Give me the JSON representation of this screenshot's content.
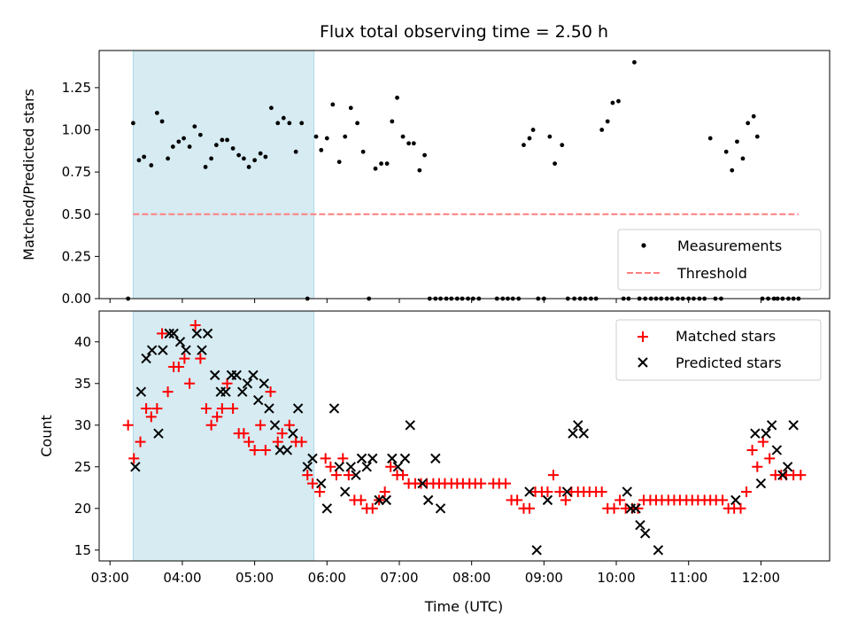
{
  "figure": {
    "title": "Flux total observing time = 2.50 h",
    "xlabel": "Time (UTC)"
  },
  "chart_data": [
    {
      "type": "scatter",
      "ylabel": "Matched/Predicted stars",
      "ylim": [
        0,
        1.47
      ],
      "yticks": [
        0.0,
        0.25,
        0.5,
        0.75,
        1.0,
        1.25
      ],
      "ytick_labels": [
        "0.00",
        "0.25",
        "0.50",
        "0.75",
        "1.00",
        "1.25"
      ],
      "xlim": [
        2.85,
        12.95
      ],
      "shaded_span": {
        "x0": 3.32,
        "x1": 5.82,
        "color": "#add8e6"
      },
      "legend": {
        "position": "lower-right",
        "entries": [
          "Measurements",
          "Threshold"
        ]
      },
      "series": [
        {
          "name": "Measurements",
          "color": "#000000",
          "marker": "dot",
          "x": [
            3.25,
            3.32,
            3.4,
            3.47,
            3.57,
            3.65,
            3.72,
            3.8,
            3.87,
            3.95,
            4.02,
            4.1,
            4.17,
            4.25,
            4.32,
            4.4,
            4.47,
            4.55,
            4.62,
            4.7,
            4.78,
            4.85,
            4.92,
            5.0,
            5.08,
            5.15,
            5.23,
            5.32,
            5.4,
            5.48,
            5.57,
            5.65,
            5.73,
            5.85,
            5.92,
            6.0,
            6.08,
            6.17,
            6.25,
            6.33,
            6.42,
            6.5,
            6.58,
            6.67,
            6.75,
            6.83,
            6.9,
            6.97,
            7.05,
            7.13,
            7.2,
            7.28,
            7.35,
            7.42,
            7.5,
            7.57,
            7.65,
            7.72,
            7.8,
            7.87,
            7.95,
            8.02,
            8.1,
            8.35,
            8.43,
            8.5,
            8.57,
            8.65,
            8.72,
            8.8,
            8.85,
            8.92,
            9.0,
            9.08,
            9.15,
            9.25,
            9.33,
            9.42,
            9.5,
            9.57,
            9.65,
            9.72,
            9.8,
            9.88,
            9.95,
            10.03,
            10.1,
            10.17,
            10.25,
            10.32,
            10.4,
            10.48,
            10.55,
            10.62,
            10.7,
            10.77,
            10.85,
            10.92,
            11.0,
            11.07,
            11.15,
            11.22,
            11.3,
            11.37,
            11.45,
            11.52,
            11.6,
            11.67,
            11.75,
            11.82,
            11.9,
            11.95,
            12.02,
            12.1,
            12.18,
            12.23,
            12.3,
            12.38,
            12.45,
            12.52
          ],
          "y": [
            0.0,
            1.04,
            0.82,
            0.84,
            0.79,
            1.1,
            1.05,
            0.83,
            0.9,
            0.93,
            0.95,
            0.9,
            1.02,
            0.97,
            0.78,
            0.83,
            0.91,
            0.94,
            0.94,
            0.89,
            0.85,
            0.83,
            0.78,
            0.82,
            0.86,
            0.84,
            1.13,
            1.04,
            1.07,
            1.04,
            0.87,
            1.04,
            0.0,
            0.96,
            0.88,
            0.95,
            1.15,
            0.81,
            0.96,
            1.13,
            1.04,
            0.87,
            0.0,
            0.77,
            0.8,
            0.8,
            1.05,
            1.19,
            0.96,
            0.92,
            0.92,
            0.76,
            0.85,
            0.0,
            0.0,
            0.0,
            0.0,
            0.0,
            0.0,
            0.0,
            0.0,
            0.0,
            0.0,
            0.0,
            0.0,
            0.0,
            0.0,
            0.0,
            0.91,
            0.95,
            1.0,
            0.0,
            0.0,
            0.96,
            0.8,
            0.91,
            0.0,
            0.0,
            0.0,
            0.0,
            0.0,
            0.0,
            1.0,
            1.05,
            1.16,
            1.17,
            0.0,
            0.0,
            1.4,
            0.0,
            0.0,
            0.0,
            0.0,
            0.0,
            0.0,
            0.0,
            0.0,
            0.0,
            0.0,
            0.0,
            0.0,
            0.0,
            0.95,
            0.0,
            0.0,
            0.87,
            0.76,
            0.93,
            0.83,
            1.04,
            1.08,
            0.96,
            0.0,
            0.0,
            0.0,
            0.0,
            0.0,
            0.0,
            0.0,
            0.0
          ]
        },
        {
          "name": "Threshold",
          "color": "#ff7f7f",
          "style": "dashed",
          "x": [
            3.32,
            12.52
          ],
          "y": [
            0.5,
            0.5
          ]
        }
      ]
    },
    {
      "type": "scatter",
      "ylabel": "Count",
      "ylim": [
        13.7,
        43.7
      ],
      "yticks": [
        15,
        20,
        25,
        30,
        35,
        40
      ],
      "ytick_labels": [
        "15",
        "20",
        "25",
        "30",
        "35",
        "40"
      ],
      "xlim": [
        2.85,
        12.95
      ],
      "xticks": [
        3,
        4,
        5,
        6,
        7,
        8,
        9,
        10,
        11,
        12
      ],
      "xtick_labels": [
        "03:00",
        "04:00",
        "05:00",
        "06:00",
        "07:00",
        "08:00",
        "09:00",
        "10:00",
        "11:00",
        "12:00"
      ],
      "shaded_span": {
        "x0": 3.32,
        "x1": 5.82,
        "color": "#add8e6"
      },
      "legend": {
        "position": "top-right",
        "entries": [
          "Matched stars",
          "Predicted stars"
        ]
      },
      "series": [
        {
          "name": "Matched stars",
          "color": "#ff0000",
          "marker": "plus",
          "x": [
            3.25,
            3.33,
            3.42,
            3.5,
            3.57,
            3.65,
            3.72,
            3.8,
            3.88,
            3.95,
            4.03,
            4.1,
            4.18,
            4.25,
            4.33,
            4.4,
            4.48,
            4.55,
            4.62,
            4.7,
            4.78,
            4.85,
            4.92,
            5.0,
            5.08,
            5.15,
            5.22,
            5.32,
            5.38,
            5.48,
            5.57,
            5.65,
            5.73,
            5.8,
            5.9,
            5.98,
            6.05,
            6.13,
            6.22,
            6.3,
            6.38,
            6.47,
            6.55,
            6.63,
            6.72,
            6.8,
            6.88,
            6.97,
            7.05,
            7.13,
            7.22,
            7.3,
            7.38,
            7.47,
            7.55,
            7.63,
            7.72,
            7.8,
            7.88,
            7.97,
            8.05,
            8.13,
            8.3,
            8.38,
            8.47,
            8.55,
            8.63,
            8.72,
            8.8,
            8.88,
            8.97,
            9.05,
            9.13,
            9.22,
            9.3,
            9.38,
            9.47,
            9.55,
            9.63,
            9.72,
            9.8,
            9.88,
            9.97,
            10.05,
            10.13,
            10.22,
            10.3,
            10.38,
            10.47,
            10.55,
            10.63,
            10.72,
            10.8,
            10.88,
            10.97,
            11.05,
            11.13,
            11.22,
            11.3,
            11.38,
            11.47,
            11.55,
            11.63,
            11.72,
            11.8,
            11.88,
            11.95,
            12.03,
            12.12,
            12.2,
            12.28,
            12.35,
            12.45,
            12.55
          ],
          "y": [
            30,
            26,
            28,
            32,
            31,
            32,
            41,
            34,
            37,
            37,
            38,
            35,
            42,
            38,
            32,
            30,
            31,
            32,
            35,
            32,
            29,
            29,
            28,
            27,
            30,
            27,
            34,
            28,
            29,
            30,
            28,
            28,
            24,
            23,
            22,
            26,
            25,
            24,
            26,
            24,
            21,
            21,
            20,
            20,
            21,
            22,
            25,
            24,
            24,
            23,
            23,
            23,
            23,
            23,
            23,
            23,
            23,
            23,
            23,
            23,
            23,
            23,
            23,
            23,
            23,
            21,
            21,
            20,
            20,
            22,
            22,
            22,
            24,
            22,
            21,
            22,
            22,
            22,
            22,
            22,
            22,
            20,
            20,
            21,
            20,
            20,
            20,
            21,
            21,
            21,
            21,
            21,
            21,
            21,
            21,
            21,
            21,
            21,
            21,
            21,
            21,
            20,
            20,
            20,
            22,
            27,
            25,
            28,
            26,
            24,
            24,
            24,
            24,
            24
          ]
        },
        {
          "name": "Predicted stars",
          "color": "#000000",
          "marker": "x",
          "x": [
            3.35,
            3.43,
            3.5,
            3.58,
            3.67,
            3.73,
            3.82,
            3.88,
            3.97,
            4.05,
            4.2,
            4.27,
            4.35,
            4.45,
            4.53,
            4.6,
            4.68,
            4.75,
            4.83,
            4.9,
            4.98,
            5.05,
            5.13,
            5.2,
            5.28,
            5.35,
            5.45,
            5.53,
            5.6,
            5.73,
            5.8,
            5.92,
            6.0,
            6.1,
            6.17,
            6.25,
            6.33,
            6.4,
            6.48,
            6.55,
            6.63,
            6.72,
            6.82,
            6.9,
            6.98,
            7.08,
            7.15,
            7.32,
            7.4,
            7.5,
            7.57,
            8.8,
            8.9,
            9.05,
            9.32,
            9.4,
            9.47,
            9.55,
            10.15,
            10.2,
            10.27,
            10.33,
            10.4,
            10.58,
            11.65,
            11.92,
            12.0,
            12.07,
            12.15,
            12.22,
            12.3,
            12.37,
            12.45
          ],
          "y": [
            25,
            34,
            38,
            39,
            29,
            39,
            41,
            41,
            40,
            39,
            41,
            39,
            41,
            36,
            34,
            34,
            36,
            36,
            34,
            35,
            36,
            33,
            35,
            32,
            30,
            27,
            27,
            29,
            32,
            25,
            26,
            23,
            20,
            32,
            25,
            22,
            25,
            24,
            26,
            25,
            26,
            21,
            21,
            26,
            25,
            26,
            30,
            23,
            21,
            26,
            20,
            22,
            15,
            21,
            22,
            29,
            30,
            29,
            22,
            20,
            20,
            18,
            17,
            15,
            21,
            29,
            23,
            29,
            30,
            27,
            24,
            25,
            30
          ]
        }
      ]
    }
  ]
}
